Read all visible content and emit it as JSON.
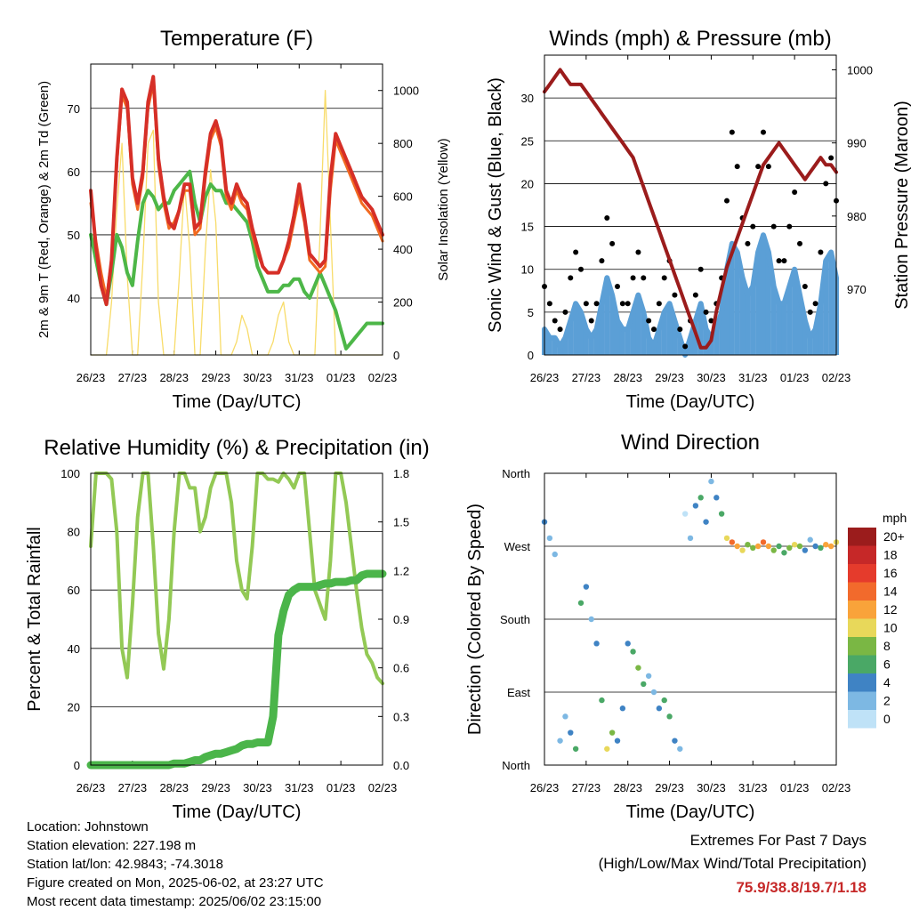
{
  "x_tick_labels": [
    "26/23",
    "27/23",
    "28/23",
    "29/23",
    "30/23",
    "31/23",
    "01/23",
    "02/23"
  ],
  "x_axis_label": "Time (Day/UTC)",
  "footer": {
    "location": "Location: Johnstown",
    "elevation": "Station elevation: 227.198 m",
    "latlon": "Station lat/lon: 42.9843; -74.3018",
    "created": "Figure created on Mon, 2025-06-02, at 23:27 UTC",
    "recent": "Most recent data timestamp: 2025/06/02 23:15:00"
  },
  "extremes": {
    "heading": "Extremes For Past 7 Days",
    "subheading": "(High/Low/Max Wind/Total Precipitation)",
    "values": "75.9/38.8/19.7/1.18"
  },
  "chart_data": [
    {
      "id": "temperature",
      "type": "line",
      "title": "Temperature (F)",
      "xlabel": "Time (Day/UTC)",
      "ylabel": "2m & 9m T (Red, Orange) & 2m Td (Green)",
      "ylabel_right": "Solar Insolation (Yellow)",
      "x_ticks": [
        "26/23",
        "27/23",
        "28/23",
        "29/23",
        "30/23",
        "31/23",
        "01/23",
        "02/23"
      ],
      "ylim": [
        31,
        77
      ],
      "yticks": [
        40,
        50,
        60,
        70
      ],
      "ylim_right": [
        0,
        1100
      ],
      "yticks_right": [
        0,
        200,
        400,
        600,
        800,
        1000
      ],
      "grid": true,
      "x_days": [
        0,
        0.125,
        0.25,
        0.375,
        0.5,
        0.625,
        0.75,
        0.875,
        1,
        1.125,
        1.25,
        1.375,
        1.5,
        1.625,
        1.75,
        1.875,
        2,
        2.125,
        2.25,
        2.375,
        2.5,
        2.625,
        2.75,
        2.875,
        3,
        3.125,
        3.25,
        3.375,
        3.5,
        3.625,
        3.75,
        3.875,
        4,
        4.125,
        4.25,
        4.375,
        4.5,
        4.625,
        4.75,
        4.875,
        5,
        5.125,
        5.25,
        5.375,
        5.5,
        5.625,
        5.75,
        5.875,
        6,
        6.125,
        6.25,
        6.375,
        6.5,
        6.625,
        6.75,
        6.875,
        7
      ],
      "series": [
        {
          "name": "2m T",
          "color": "#d62f27",
          "width": 4,
          "values": [
            57,
            48,
            42,
            39,
            46,
            62,
            73,
            71,
            59,
            55,
            60,
            71,
            75,
            62,
            56,
            52,
            51,
            54,
            58,
            58,
            51,
            52,
            60,
            66,
            68,
            65,
            57,
            55,
            58,
            56,
            55,
            51,
            48,
            45,
            44,
            44,
            44,
            46,
            49,
            53,
            58,
            53,
            47,
            46,
            45,
            46,
            59,
            66,
            64,
            62,
            60,
            58,
            56,
            55,
            54,
            52,
            50
          ]
        },
        {
          "name": "9m T",
          "color": "#f26a21",
          "width": 3,
          "values": [
            55,
            49,
            44,
            40,
            46,
            61,
            72,
            70,
            58,
            54,
            59,
            70,
            74,
            61,
            55,
            51,
            52,
            54,
            57,
            57,
            50,
            51,
            59,
            65,
            67,
            64,
            56,
            54,
            57,
            55,
            54,
            50,
            47,
            45,
            44,
            44,
            44,
            46,
            48,
            52,
            56,
            52,
            46,
            45,
            44,
            45,
            57,
            65,
            63,
            61,
            59,
            57,
            55,
            54,
            53,
            51,
            49
          ]
        },
        {
          "name": "2m Td",
          "color": "#4db748",
          "width": 4,
          "values": [
            50,
            46,
            42,
            39,
            44,
            50,
            48,
            44,
            42,
            49,
            55,
            57,
            56,
            54,
            55,
            55,
            57,
            58,
            59,
            60,
            55,
            52,
            56,
            58,
            57,
            57,
            55,
            55,
            54,
            53,
            52,
            49,
            45,
            43,
            41,
            41,
            41,
            42,
            42,
            43,
            43,
            41,
            40,
            42,
            44,
            42,
            40,
            38,
            35,
            32,
            33,
            34,
            35,
            36,
            36,
            36,
            36
          ]
        }
      ],
      "solar": {
        "name": "Solar Insolation",
        "color": "#f8dc6a",
        "values": [
          0,
          0,
          0,
          0,
          200,
          550,
          800,
          300,
          0,
          0,
          350,
          800,
          850,
          200,
          0,
          0,
          0,
          300,
          650,
          400,
          0,
          0,
          400,
          700,
          500,
          0,
          0,
          0,
          50,
          150,
          100,
          0,
          0,
          0,
          0,
          50,
          150,
          200,
          50,
          0,
          0,
          0,
          0,
          0,
          450,
          1000,
          500,
          0,
          0,
          0,
          0,
          0,
          0,
          0,
          0,
          0,
          0
        ]
      }
    },
    {
      "id": "wind",
      "type": "scatter",
      "title": "Winds (mph) & Pressure (mb)",
      "xlabel": "Time (Day/UTC)",
      "ylabel": "Sonic Wind & Gust (Blue, Black)",
      "ylabel_right": "Station Pressure (Maroon)",
      "x_ticks": [
        "26/23",
        "27/23",
        "28/23",
        "29/23",
        "30/23",
        "31/23",
        "01/23",
        "02/23"
      ],
      "ylim": [
        0,
        35
      ],
      "yticks": [
        0,
        5,
        10,
        15,
        20,
        25,
        30
      ],
      "ylim_right": [
        961,
        1002
      ],
      "yticks_right": [
        970,
        980,
        990,
        1000
      ],
      "grid": true,
      "x_days": [
        0,
        0.125,
        0.25,
        0.375,
        0.5,
        0.625,
        0.75,
        0.875,
        1,
        1.125,
        1.25,
        1.375,
        1.5,
        1.625,
        1.75,
        1.875,
        2,
        2.125,
        2.25,
        2.375,
        2.5,
        2.625,
        2.75,
        2.875,
        3,
        3.125,
        3.25,
        3.375,
        3.5,
        3.625,
        3.75,
        3.875,
        4,
        4.125,
        4.25,
        4.375,
        4.5,
        4.625,
        4.75,
        4.875,
        5,
        5.125,
        5.25,
        5.375,
        5.5,
        5.625,
        5.75,
        5.875,
        6,
        6.125,
        6.25,
        6.375,
        6.5,
        6.625,
        6.75,
        6.875,
        7
      ],
      "wind": {
        "name": "Sonic Wind",
        "color": "#5b9fd6",
        "values": [
          3,
          2,
          2,
          1,
          2,
          4,
          6,
          5,
          3,
          2,
          3,
          6,
          9,
          7,
          4,
          3,
          3,
          5,
          7,
          5,
          2,
          1,
          3,
          5,
          6,
          4,
          2,
          0,
          2,
          4,
          6,
          3,
          2,
          3,
          5,
          10,
          13,
          12,
          9,
          7,
          8,
          12,
          14,
          12,
          8,
          6,
          6,
          8,
          10,
          7,
          4,
          2,
          3,
          6,
          11,
          12,
          9
        ]
      },
      "gust": {
        "name": "Gust",
        "color": "#000000",
        "values": [
          8,
          6,
          4,
          3,
          5,
          9,
          12,
          10,
          6,
          4,
          6,
          11,
          16,
          13,
          8,
          6,
          6,
          9,
          12,
          9,
          4,
          3,
          6,
          9,
          11,
          7,
          3,
          1,
          4,
          7,
          10,
          5,
          4,
          6,
          9,
          18,
          26,
          22,
          16,
          13,
          15,
          22,
          26,
          22,
          15,
          11,
          11,
          15,
          19,
          13,
          8,
          5,
          6,
          12,
          20,
          23,
          18
        ]
      },
      "pressure": {
        "name": "Station Pressure",
        "color": "#9b1c1c",
        "values": [
          997,
          998,
          999,
          1000,
          999,
          998,
          998,
          998,
          997,
          996,
          995,
          994,
          993,
          992,
          991,
          990,
          989,
          988,
          986,
          984,
          982,
          980,
          978,
          976,
          974,
          972,
          970,
          968,
          966,
          964,
          962,
          962,
          963,
          967,
          970,
          973,
          975,
          977,
          979,
          981,
          983,
          985,
          987,
          988,
          989,
          990,
          989,
          988,
          987,
          986,
          985,
          986,
          987,
          988,
          987,
          987,
          986
        ]
      }
    },
    {
      "id": "humidity",
      "type": "line",
      "title": "Relative Humidity (%) & Precipitation (in)",
      "xlabel": "Time (Day/UTC)",
      "ylabel": "Percent & Total Rainfall",
      "x_ticks": [
        "26/23",
        "27/23",
        "28/23",
        "29/23",
        "30/23",
        "31/23",
        "01/23",
        "02/23"
      ],
      "ylim": [
        0,
        100
      ],
      "yticks": [
        0,
        20,
        40,
        60,
        80,
        100
      ],
      "ylim_right": [
        0,
        1.8
      ],
      "yticks_right": [
        0.0,
        0.3,
        0.6,
        0.9,
        1.2,
        1.5,
        1.8
      ],
      "yticklabels_right": [
        "0.0",
        "0.3",
        "0.6",
        "0.9",
        "1.2",
        "1.5",
        "1.8"
      ],
      "grid": true,
      "x_days": [
        0,
        0.125,
        0.25,
        0.375,
        0.5,
        0.625,
        0.75,
        0.875,
        1,
        1.125,
        1.25,
        1.375,
        1.5,
        1.625,
        1.75,
        1.875,
        2,
        2.125,
        2.25,
        2.375,
        2.5,
        2.625,
        2.75,
        2.875,
        3,
        3.125,
        3.25,
        3.375,
        3.5,
        3.625,
        3.75,
        3.875,
        4,
        4.125,
        4.25,
        4.375,
        4.5,
        4.625,
        4.75,
        4.875,
        5,
        5.125,
        5.25,
        5.375,
        5.5,
        5.625,
        5.75,
        5.875,
        6,
        6.125,
        6.25,
        6.375,
        6.5,
        6.625,
        6.75,
        6.875,
        7
      ],
      "series": [
        {
          "name": "Relative Humidity",
          "color": "#93c955",
          "width": 4,
          "values": [
            75,
            100,
            100,
            100,
            98,
            80,
            40,
            30,
            55,
            85,
            100,
            100,
            75,
            45,
            33,
            50,
            80,
            100,
            100,
            95,
            95,
            80,
            85,
            95,
            100,
            100,
            100,
            90,
            70,
            60,
            57,
            75,
            100,
            100,
            98,
            98,
            97,
            100,
            98,
            95,
            100,
            100,
            80,
            60,
            55,
            50,
            70,
            100,
            100,
            90,
            75,
            60,
            47,
            38,
            35,
            30,
            28
          ]
        },
        {
          "name": "Total Rainfall",
          "color": "#4bb54a",
          "width": 9,
          "values": [
            0,
            0,
            0,
            0,
            0,
            0,
            0,
            0,
            0,
            0,
            0,
            0,
            0,
            0,
            0,
            0,
            0.01,
            0.01,
            0.01,
            0.02,
            0.03,
            0.03,
            0.05,
            0.06,
            0.07,
            0.07,
            0.08,
            0.09,
            0.1,
            0.12,
            0.13,
            0.13,
            0.14,
            0.14,
            0.14,
            0.3,
            0.8,
            0.95,
            1.05,
            1.08,
            1.1,
            1.1,
            1.1,
            1.1,
            1.11,
            1.12,
            1.12,
            1.13,
            1.13,
            1.13,
            1.14,
            1.14,
            1.17,
            1.18,
            1.18,
            1.18,
            1.18
          ]
        }
      ]
    },
    {
      "id": "direction",
      "type": "scatter",
      "title": "Wind Direction",
      "xlabel": "Time (Day/UTC)",
      "ylabel": "Direction (Colored By Speed)",
      "x_ticks": [
        "26/23",
        "27/23",
        "28/23",
        "29/23",
        "30/23",
        "31/23",
        "01/23",
        "02/23"
      ],
      "y_ticks": [
        "North",
        "East",
        "South",
        "West",
        "North"
      ],
      "ylim_deg": [
        0,
        360
      ],
      "grid": true,
      "x_days": [
        0,
        0.125,
        0.25,
        0.375,
        0.5,
        0.625,
        0.75,
        0.875,
        1,
        1.125,
        1.25,
        1.375,
        1.5,
        1.625,
        1.75,
        1.875,
        2,
        2.125,
        2.25,
        2.375,
        2.5,
        2.625,
        2.75,
        2.875,
        3,
        3.125,
        3.25,
        3.375,
        3.5,
        3.625,
        3.75,
        3.875,
        4,
        4.125,
        4.25,
        4.375,
        4.5,
        4.625,
        4.75,
        4.875,
        5,
        5.125,
        5.25,
        5.375,
        5.5,
        5.625,
        5.75,
        5.875,
        6,
        6.125,
        6.25,
        6.375,
        6.5,
        6.625,
        6.75,
        6.875,
        7
      ],
      "direction_deg": [
        300,
        280,
        260,
        30,
        60,
        40,
        20,
        200,
        220,
        180,
        150,
        80,
        20,
        40,
        30,
        70,
        150,
        140,
        120,
        100,
        110,
        90,
        70,
        80,
        60,
        30,
        20,
        310,
        280,
        320,
        330,
        300,
        350,
        330,
        310,
        280,
        275,
        270,
        265,
        272,
        268,
        270,
        275,
        270,
        265,
        270,
        262,
        268,
        272,
        270,
        265,
        278,
        270,
        268,
        272,
        270,
        275
      ],
      "speed_mph": [
        3,
        2,
        2,
        1,
        2,
        4,
        6,
        5,
        3,
        2,
        3,
        6,
        9,
        7,
        4,
        3,
        3,
        5,
        7,
        5,
        2,
        1,
        3,
        5,
        6,
        4,
        2,
        0,
        2,
        4,
        6,
        3,
        2,
        3,
        5,
        10,
        13,
        12,
        9,
        7,
        8,
        12,
        14,
        12,
        8,
        6,
        6,
        8,
        10,
        7,
        4,
        2,
        3,
        6,
        11,
        12,
        9
      ],
      "legend": {
        "title": "mph",
        "labels": [
          "20+",
          "18",
          "16",
          "14",
          "12",
          "10",
          "8",
          "6",
          "4",
          "2",
          "0"
        ],
        "colors": [
          "#9b1c1c",
          "#c62828",
          "#e53b2c",
          "#f26a2c",
          "#f9a33a",
          "#e8d85a",
          "#7ab744",
          "#4aa866",
          "#3f83c4",
          "#7db8e3",
          "#bfe2f7"
        ]
      }
    }
  ]
}
